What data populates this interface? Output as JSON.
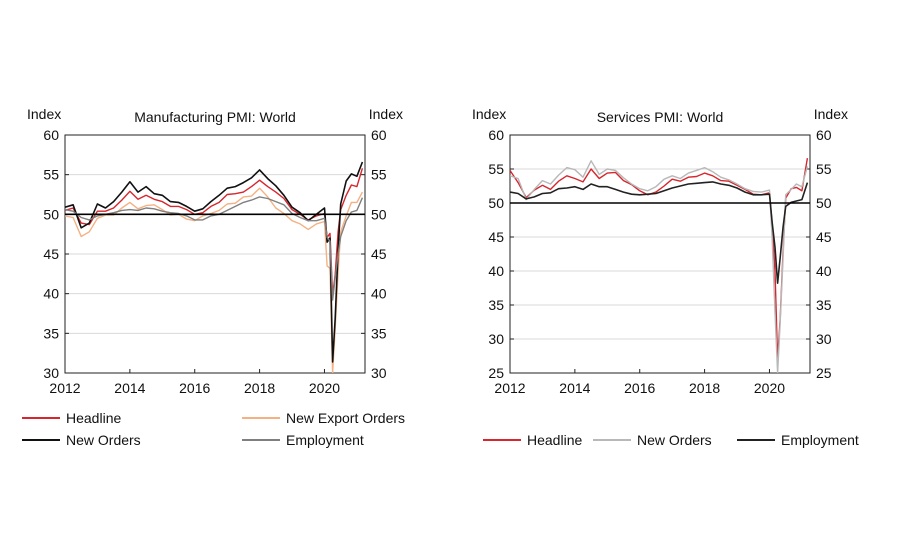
{
  "chart_data": [
    {
      "type": "line",
      "title": "Manufacturing PMI: World",
      "ylabel_left": "Index",
      "ylabel_right": "Index",
      "xlim": [
        2012,
        2021.25
      ],
      "ylim": [
        30,
        60
      ],
      "yticks": [
        "30",
        "35",
        "40",
        "45",
        "50",
        "55",
        "60"
      ],
      "xticks": [
        "2012",
        "2014",
        "2016",
        "2018",
        "2020"
      ],
      "xtick_values": [
        2012,
        2014,
        2016,
        2018,
        2020
      ],
      "ytick_values": [
        30,
        35,
        40,
        45,
        50,
        55,
        60
      ],
      "reference_line": 50,
      "legend": [
        "Headline",
        "New Export Orders",
        "New Orders",
        "Employment"
      ],
      "series": [
        {
          "name": "Headline",
          "color": "#d7262d",
          "x": [
            2012,
            2012.25,
            2012.5,
            2012.75,
            2013,
            2013.25,
            2013.5,
            2013.75,
            2014,
            2014.25,
            2014.5,
            2014.75,
            2015,
            2015.25,
            2015.5,
            2015.75,
            2016,
            2016.25,
            2016.5,
            2016.75,
            2017,
            2017.25,
            2017.5,
            2017.75,
            2018,
            2018.25,
            2018.5,
            2018.75,
            2019,
            2019.25,
            2019.5,
            2019.75,
            2020,
            2020.08,
            2020.17,
            2020.25,
            2020.33,
            2020.42,
            2020.5,
            2020.67,
            2020.83,
            2021,
            2021.17
          ],
          "values": [
            50.5,
            50.8,
            48.9,
            48.7,
            50.4,
            50.4,
            50.8,
            51.8,
            52.9,
            51.9,
            52.4,
            51.9,
            51.6,
            51.0,
            51.0,
            50.6,
            50.0,
            50.2,
            51.0,
            51.5,
            52.5,
            52.6,
            52.8,
            53.5,
            54.3,
            53.5,
            52.8,
            52.0,
            50.6,
            50.0,
            49.3,
            49.8,
            50.1,
            47.1,
            47.6,
            39.8,
            42.4,
            47.8,
            50.6,
            52.4,
            53.7,
            53.5,
            55.8
          ]
        },
        {
          "name": "New Export Orders",
          "color": "#f4b183",
          "x": [
            2012,
            2012.25,
            2012.5,
            2012.75,
            2013,
            2013.25,
            2013.5,
            2013.75,
            2014,
            2014.25,
            2014.5,
            2014.75,
            2015,
            2015.25,
            2015.5,
            2015.75,
            2016,
            2016.25,
            2016.5,
            2016.75,
            2017,
            2017.25,
            2017.5,
            2017.75,
            2018,
            2018.25,
            2018.5,
            2018.75,
            2019,
            2019.25,
            2019.5,
            2019.75,
            2020,
            2020.08,
            2020.17,
            2020.25,
            2020.33,
            2020.42,
            2020.5,
            2020.67,
            2020.83,
            2021,
            2021.17
          ],
          "values": [
            49.8,
            49.6,
            47.2,
            47.8,
            49.5,
            49.9,
            49.9,
            50.8,
            51.5,
            50.7,
            51.1,
            51.2,
            50.6,
            49.9,
            50.0,
            49.4,
            49.2,
            49.8,
            50.1,
            50.5,
            51.3,
            51.4,
            52.2,
            52.3,
            53.3,
            52.2,
            50.8,
            50.1,
            49.2,
            48.8,
            48.1,
            48.8,
            49.1,
            43.5,
            43.2,
            30.0,
            35.6,
            42.7,
            47.8,
            49.8,
            51.5,
            51.5,
            52.8
          ]
        },
        {
          "name": "New Orders",
          "color": "#111111",
          "x": [
            2012,
            2012.25,
            2012.5,
            2012.75,
            2013,
            2013.25,
            2013.5,
            2013.75,
            2014,
            2014.25,
            2014.5,
            2014.75,
            2015,
            2015.25,
            2015.5,
            2015.75,
            2016,
            2016.25,
            2016.5,
            2016.75,
            2017,
            2017.25,
            2017.5,
            2017.75,
            2018,
            2018.25,
            2018.5,
            2018.75,
            2019,
            2019.25,
            2019.5,
            2019.75,
            2020,
            2020.08,
            2020.17,
            2020.25,
            2020.33,
            2020.42,
            2020.5,
            2020.67,
            2020.83,
            2021,
            2021.17
          ],
          "values": [
            50.9,
            51.2,
            48.3,
            48.9,
            51.3,
            50.8,
            51.6,
            52.8,
            54.1,
            52.8,
            53.5,
            52.6,
            52.4,
            51.6,
            51.5,
            51.0,
            50.4,
            50.7,
            51.6,
            52.4,
            53.3,
            53.5,
            54.0,
            54.6,
            55.6,
            54.5,
            53.6,
            52.4,
            50.9,
            50.2,
            49.2,
            50.0,
            50.8,
            46.5,
            47.0,
            31.4,
            36.9,
            45.5,
            51.3,
            54.2,
            55.1,
            54.8,
            56.6
          ]
        },
        {
          "name": "Employment",
          "color": "#7f7f7f",
          "x": [
            2012,
            2012.25,
            2012.5,
            2012.75,
            2013,
            2013.25,
            2013.5,
            2013.75,
            2014,
            2014.25,
            2014.5,
            2014.75,
            2015,
            2015.25,
            2015.5,
            2015.75,
            2016,
            2016.25,
            2016.5,
            2016.75,
            2017,
            2017.25,
            2017.5,
            2017.75,
            2018,
            2018.25,
            2018.5,
            2018.75,
            2019,
            2019.25,
            2019.5,
            2019.75,
            2020,
            2020.08,
            2020.17,
            2020.25,
            2020.33,
            2020.42,
            2020.5,
            2020.67,
            2020.83,
            2021,
            2021.17
          ],
          "values": [
            50.6,
            50.4,
            49.6,
            49.3,
            49.8,
            50.0,
            50.2,
            50.5,
            50.6,
            50.5,
            50.8,
            50.7,
            50.4,
            50.2,
            50.1,
            49.8,
            49.3,
            49.3,
            49.8,
            50.0,
            50.5,
            51.0,
            51.5,
            51.8,
            52.2,
            52.0,
            51.6,
            51.2,
            50.1,
            49.6,
            49.2,
            49.2,
            49.5,
            47.1,
            46.6,
            39.2,
            42.0,
            45.0,
            47.2,
            49.2,
            50.3,
            50.5,
            52.1
          ]
        }
      ]
    },
    {
      "type": "line",
      "title": "Services PMI: World",
      "ylabel_left": "Index",
      "ylabel_right": "Index",
      "xlim": [
        2012,
        2021.25
      ],
      "ylim": [
        25,
        60
      ],
      "yticks": [
        "25",
        "30",
        "35",
        "40",
        "45",
        "50",
        "55",
        "60"
      ],
      "xticks": [
        "2012",
        "2014",
        "2016",
        "2018",
        "2020"
      ],
      "xtick_values": [
        2012,
        2014,
        2016,
        2018,
        2020
      ],
      "ytick_values": [
        25,
        30,
        35,
        40,
        45,
        50,
        55,
        60
      ],
      "reference_line": 50,
      "legend": [
        "Headline",
        "New Orders",
        "Employment"
      ],
      "series": [
        {
          "name": "Headline",
          "color": "#d7262d",
          "x": [
            2012,
            2012.25,
            2012.5,
            2012.75,
            2013,
            2013.25,
            2013.5,
            2013.75,
            2014,
            2014.25,
            2014.5,
            2014.75,
            2015,
            2015.25,
            2015.5,
            2015.75,
            2016,
            2016.25,
            2016.5,
            2016.75,
            2017,
            2017.25,
            2017.5,
            2017.75,
            2018,
            2018.25,
            2018.5,
            2018.75,
            2019,
            2019.25,
            2019.5,
            2019.75,
            2020,
            2020.08,
            2020.17,
            2020.25,
            2020.33,
            2020.42,
            2020.5,
            2020.67,
            2020.83,
            2021,
            2021.17
          ],
          "values": [
            54.8,
            53.0,
            50.8,
            51.9,
            52.6,
            52.0,
            53.2,
            54.0,
            53.6,
            53.1,
            55.0,
            53.6,
            54.4,
            54.5,
            53.3,
            52.7,
            51.8,
            51.2,
            51.6,
            52.5,
            53.5,
            53.2,
            53.8,
            53.9,
            54.4,
            54.0,
            53.3,
            53.2,
            52.6,
            52.0,
            51.3,
            51.2,
            51.5,
            47.0,
            40.0,
            27.0,
            33.0,
            43.0,
            50.7,
            52.1,
            52.3,
            51.8,
            56.6
          ]
        },
        {
          "name": "New Orders",
          "color": "#b8b8b8",
          "x": [
            2012,
            2012.25,
            2012.5,
            2012.75,
            2013,
            2013.25,
            2013.5,
            2013.75,
            2014,
            2014.25,
            2014.5,
            2014.75,
            2015,
            2015.25,
            2015.5,
            2015.75,
            2016,
            2016.25,
            2016.5,
            2016.75,
            2017,
            2017.25,
            2017.5,
            2017.75,
            2018,
            2018.25,
            2018.5,
            2018.75,
            2019,
            2019.25,
            2019.5,
            2019.75,
            2020,
            2020.08,
            2020.17,
            2020.25,
            2020.33,
            2020.42,
            2020.5,
            2020.67,
            2020.83,
            2021,
            2021.17
          ],
          "values": [
            54.0,
            53.6,
            50.5,
            52.0,
            53.3,
            52.8,
            54.1,
            55.2,
            54.9,
            53.8,
            56.2,
            54.2,
            55.0,
            54.8,
            53.7,
            52.8,
            52.1,
            51.8,
            52.4,
            53.5,
            54.0,
            53.6,
            54.4,
            54.8,
            55.2,
            54.6,
            53.8,
            53.4,
            52.8,
            52.1,
            51.7,
            51.6,
            51.9,
            45.0,
            34.0,
            25.0,
            32.5,
            42.0,
            51.2,
            52.0,
            52.8,
            52.4,
            55.4
          ]
        },
        {
          "name": "Employment",
          "color": "#222222",
          "x": [
            2012,
            2012.25,
            2012.5,
            2012.75,
            2013,
            2013.25,
            2013.5,
            2013.75,
            2014,
            2014.25,
            2014.5,
            2014.75,
            2015,
            2015.25,
            2015.5,
            2015.75,
            2016,
            2016.25,
            2016.5,
            2016.75,
            2017,
            2017.25,
            2017.5,
            2017.75,
            2018,
            2018.25,
            2018.5,
            2018.75,
            2019,
            2019.25,
            2019.5,
            2019.75,
            2020,
            2020.08,
            2020.17,
            2020.25,
            2020.33,
            2020.42,
            2020.5,
            2020.67,
            2020.83,
            2021,
            2021.17
          ],
          "values": [
            51.6,
            51.4,
            50.6,
            50.9,
            51.4,
            51.5,
            52.1,
            52.2,
            52.4,
            52.0,
            52.8,
            52.4,
            52.4,
            52.0,
            51.6,
            51.3,
            51.2,
            51.3,
            51.4,
            51.8,
            52.2,
            52.5,
            52.8,
            52.9,
            53.0,
            53.1,
            52.8,
            52.6,
            52.2,
            51.6,
            51.2,
            51.2,
            51.3,
            47.2,
            43.5,
            38.2,
            42.0,
            46.5,
            49.5,
            50.1,
            50.3,
            50.5,
            53.0
          ]
        }
      ]
    }
  ]
}
